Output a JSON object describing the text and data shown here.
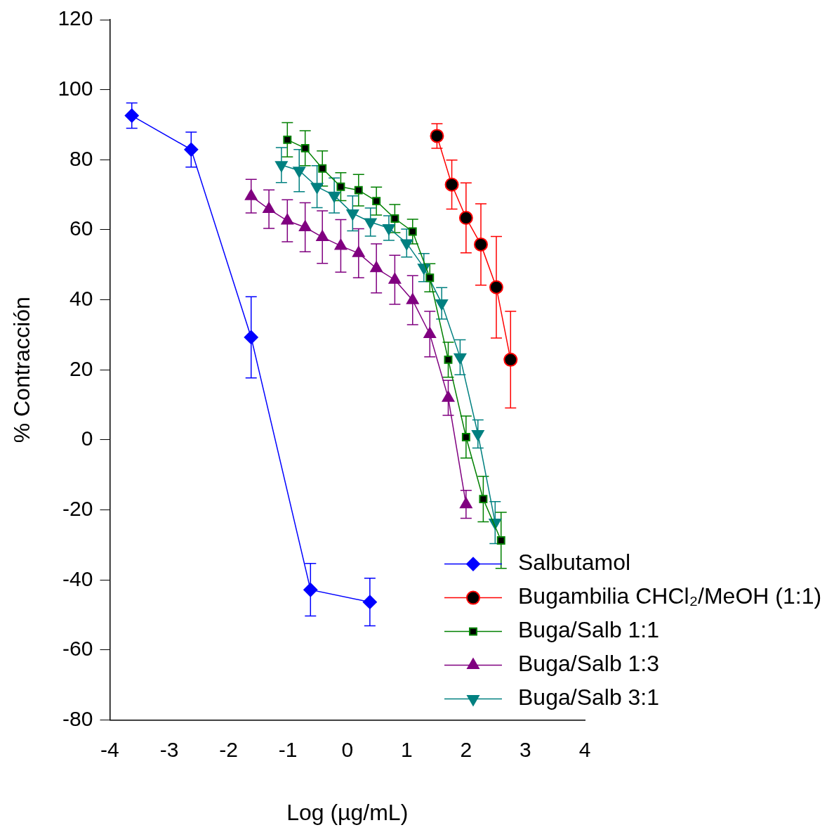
{
  "chart_data": {
    "type": "line",
    "xlabel": "Log (µg/mL)",
    "ylabel": "% Contracción",
    "xlim": [
      -4,
      4
    ],
    "xticks": [
      -4,
      -3,
      -2,
      -1,
      0,
      1,
      2,
      3,
      4
    ],
    "ylim": [
      -80,
      120
    ],
    "yticks": [
      -80,
      -60,
      -40,
      -20,
      0,
      20,
      40,
      60,
      80,
      100,
      120
    ],
    "grid": false,
    "legend": "bottom right",
    "series": [
      {
        "name": "Salbutamol",
        "color": "#0000ff",
        "marker": "diamond",
        "x": [
          -3.63,
          -2.63,
          -1.62,
          -0.62,
          0.38
        ],
        "values": [
          92.6,
          82.9,
          29.3,
          -42.8,
          -46.3
        ],
        "errors": [
          3.6,
          5,
          11.6,
          7.5,
          6.8
        ]
      },
      {
        "name": "Bugambilia CHCl₂/MeOH (1:1)",
        "color": "#ff0000",
        "marker": "circle",
        "x": [
          1.51,
          1.76,
          2.0,
          2.25,
          2.51,
          2.75
        ],
        "values": [
          86.8,
          72.9,
          63.4,
          55.8,
          43.6,
          22.9
        ],
        "errors": [
          3.5,
          7,
          10,
          11.6,
          14.5,
          13.8
        ]
      },
      {
        "name": "Buga/Salb 1:1",
        "color": "#008000",
        "marker": "square",
        "x": [
          -1.01,
          -0.71,
          -0.42,
          -0.11,
          0.19,
          0.49,
          0.8,
          1.1,
          1.39,
          1.7,
          2.0,
          2.29,
          2.59
        ],
        "values": [
          85.7,
          83.3,
          77.5,
          72.3,
          71.3,
          68.2,
          63.2,
          59.5,
          46.3,
          22.9,
          0.8,
          -16.9,
          -28.7
        ],
        "errors": [
          4.9,
          5,
          5,
          4,
          4.5,
          4,
          4,
          3.5,
          4,
          5,
          6,
          6.5,
          8
        ]
      },
      {
        "name": "Buga/Salb 1:3",
        "color": "#800080",
        "marker": "triangle",
        "x": [
          -1.62,
          -1.32,
          -1.01,
          -0.71,
          -0.42,
          -0.11,
          0.19,
          0.49,
          0.8,
          1.1,
          1.39,
          1.7,
          2.0
        ],
        "values": [
          69.6,
          65.9,
          62.6,
          60.7,
          57.9,
          55.4,
          53.3,
          49.0,
          45.7,
          39.9,
          30.2,
          12.0,
          -18.4
        ],
        "errors": [
          4.8,
          5.5,
          6,
          7,
          7.5,
          7.5,
          7,
          7,
          7,
          7,
          6.5,
          5,
          4
        ]
      },
      {
        "name": "Buga/Salb 3:1",
        "color": "#008080",
        "marker": "triangle-down",
        "x": [
          -1.11,
          -0.81,
          -0.51,
          -0.22,
          0.09,
          0.39,
          0.7,
          1.0,
          1.29,
          1.59,
          1.9,
          2.2,
          2.49
        ],
        "values": [
          78.5,
          76.9,
          72.3,
          69.8,
          64.7,
          62.2,
          60.5,
          56.2,
          49.2,
          39.0,
          23.6,
          1.7,
          -23.6
        ],
        "errors": [
          5,
          6,
          6,
          5,
          5,
          4,
          3.5,
          4,
          4,
          4.5,
          5,
          4,
          6
        ]
      }
    ]
  }
}
